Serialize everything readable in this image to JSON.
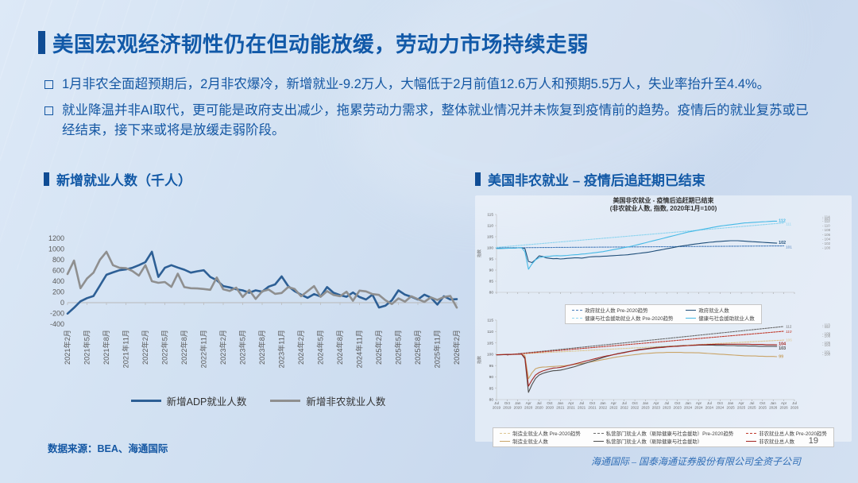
{
  "slide": {
    "title": "美国宏观经济韧性仍在但动能放缓，劳动力市场持续走弱",
    "bullets": [
      "1月非农全面超预期后，2月非农爆冷，新增就业-9.2万人，大幅低于2月前值12.6万人和预期5.5万人，失业率抬升至4.4%。",
      "就业降温并非AI取代，更可能是政府支出减少，拖累劳动力需求，整体就业情况并未恢复到疫情前的趋势。疫情后的就业复苏或已经结束，接下来或将是放缓走弱阶段。"
    ],
    "source": "数据来源：BEA、海通国际",
    "page_number": "19",
    "company_footer": "海通国际 – 国泰海通证券股份有限公司全资子公司"
  },
  "left_section": {
    "header": "新增就业人数（千人）"
  },
  "right_section": {
    "header": "美国非农就业 – 疫情后追赶期已结束"
  },
  "colors": {
    "title_blue": "#1159a8",
    "accent_navy": "#0f4c94",
    "adp_blue": "#2d5f95",
    "nfp_gray": "#8f8f8f",
    "gov_navy": "#1f4e79",
    "gov_trend": "#4a7ebb",
    "health_blue": "#45b9e6",
    "health_trend": "#8ed4ef",
    "mfg_tan": "#c9a468",
    "mfg_trend": "#ddc693",
    "priv_gray": "#4d4d4d",
    "priv_trend": "#6b6b6b",
    "nf_red": "#a32622",
    "nf_trend": "#c0392b"
  },
  "chart_data": [
    {
      "type": "line",
      "title": "新增就业人数（千人）",
      "ylim": [
        -400,
        1200
      ],
      "yticks": [
        1200,
        1000,
        800,
        600,
        400,
        200,
        0,
        -200,
        -400
      ],
      "x_label_step": 3,
      "x_labels": [
        "2021年2月",
        "2021年5月",
        "2021年8月",
        "2021年11月",
        "2022年2月",
        "2022年5月",
        "2022年8月",
        "2022年11月",
        "2023年2月",
        "2023年5月",
        "2023年8月",
        "2023年11月",
        "2024年2月",
        "2024年5月",
        "2024年8月",
        "2024年11月",
        "2025年2月",
        "2025年5月",
        "2025年8月",
        "2025年11月",
        "2026年2月"
      ],
      "legend_position": "bottom",
      "series": [
        {
          "name": "新增ADP就业人数",
          "color": "#2d5f95",
          "width": 2.6,
          "values": [
            -205,
            -95,
            25,
            85,
            125,
            320,
            520,
            565,
            605,
            620,
            650,
            700,
            755,
            950,
            480,
            650,
            700,
            655,
            615,
            560,
            585,
            605,
            480,
            420,
            310,
            285,
            250,
            230,
            185,
            230,
            205,
            300,
            340,
            490,
            310,
            215,
            150,
            90,
            160,
            115,
            290,
            185,
            140,
            110,
            190,
            105,
            60,
            150,
            -90,
            -55,
            45,
            230,
            150,
            110,
            60,
            150,
            95,
            -35,
            120,
            60,
            65
          ]
        },
        {
          "name": "新增非农就业人数",
          "color": "#8f8f8f",
          "width": 2.6,
          "values": [
            535,
            785,
            270,
            450,
            560,
            800,
            950,
            700,
            650,
            645,
            590,
            505,
            700,
            400,
            370,
            385,
            295,
            540,
            290,
            270,
            265,
            255,
            240,
            470,
            250,
            220,
            280,
            105,
            235,
            70,
            210,
            245,
            165,
            180,
            290,
            255,
            120,
            215,
            310,
            110,
            215,
            145,
            120,
            205,
            35,
            225,
            210,
            160,
            145,
            45,
            -25,
            80,
            20,
            120,
            65,
            15,
            100,
            50,
            105,
            126,
            -92
          ]
        }
      ]
    },
    {
      "type": "line",
      "title": "美国非农就业 - 疫情后追赶期已结束",
      "subtitle": "(非农就业人数, 指数, 2020年1月=100)",
      "ylabel": "指数",
      "ylim": [
        80,
        115
      ],
      "yticks": [
        80,
        85,
        90,
        95,
        100,
        105,
        110,
        115
      ],
      "x_start_label": "Jul 2019",
      "x_end_label": "Jul 2026",
      "right_axis_ticks": [
        100,
        102,
        104,
        106,
        108,
        110,
        112,
        113,
        114
      ],
      "legend_position": "bottom",
      "series": [
        {
          "name": "政府就业人数 Pre-2020趋势",
          "color": "#4a7ebb",
          "dash": true,
          "x": [
            0,
            81
          ],
          "values": [
            100.0,
            100.9
          ],
          "end_label": "101",
          "end_dy": 3
        },
        {
          "name": "健康与社会援助就业人数 Pre-2020趋势",
          "color": "#8ed4ef",
          "dash": true,
          "x": [
            0,
            81
          ],
          "values": [
            100.2,
            111.2
          ],
          "end_label": "111",
          "end_dy": 3
        },
        {
          "name": "政府就业人数",
          "color": "#1f4e79",
          "end_label": "102",
          "end_big": true,
          "end_dy": 1,
          "values": [
            99.8,
            99.8,
            99.8,
            99.9,
            99.9,
            99.9,
            100.0,
            100.0,
            99.7,
            93.9,
            93.4,
            94.7,
            96.4,
            96.1,
            95.5,
            95.3,
            95.1,
            95.2,
            95.0,
            95.1,
            95.3,
            95.4,
            95.5,
            95.5,
            95.4,
            95.6,
            95.9,
            96.0,
            96.1,
            96.1,
            96.2,
            96.3,
            96.4,
            96.5,
            96.6,
            96.7,
            96.8,
            96.9,
            97.1,
            97.3,
            97.5,
            97.7,
            97.9,
            98.1,
            98.4,
            98.7,
            99.0,
            99.3,
            99.6,
            99.9,
            100.2,
            100.5,
            100.8,
            101.0,
            101.2,
            101.5,
            101.7,
            101.9,
            102.1,
            102.3,
            102.5,
            102.6,
            102.8,
            102.9,
            103.0,
            103.1,
            103.2,
            103.2,
            103.2,
            103.1,
            103.0,
            102.9,
            102.8,
            102.7,
            102.6,
            102.5,
            102.4,
            102.3,
            102.2,
            102.1
          ]
        },
        {
          "name": "健康与社会援助就业人数",
          "color": "#45b9e6",
          "end_label": "112",
          "end_big": true,
          "end_dy": 1,
          "values": [
            99.7,
            99.7,
            99.8,
            99.8,
            99.9,
            99.9,
            100.0,
            100.1,
            98.3,
            90.4,
            92.8,
            94.6,
            95.6,
            95.9,
            96.1,
            96.2,
            96.4,
            96.5,
            96.4,
            96.5,
            96.6,
            96.8,
            96.9,
            97.0,
            97.2,
            97.3,
            97.5,
            97.7,
            97.9,
            98.1,
            98.3,
            98.6,
            98.9,
            99.2,
            99.5,
            99.8,
            100.1,
            100.4,
            100.7,
            101.1,
            101.5,
            101.9,
            102.3,
            102.7,
            103.1,
            103.5,
            103.9,
            104.3,
            104.7,
            105.1,
            105.5,
            105.9,
            106.3,
            106.7,
            107.1,
            107.4,
            107.7,
            108.0,
            108.3,
            108.6,
            108.9,
            109.2,
            109.5,
            109.8,
            110.0,
            110.2,
            110.4,
            110.6,
            110.8,
            111.0,
            111.2,
            111.3,
            111.4,
            111.5,
            111.6,
            111.7,
            111.8,
            111.9,
            112.0,
            112.0
          ]
        }
      ]
    },
    {
      "type": "line",
      "ylabel": "指数",
      "ylim": [
        80,
        115
      ],
      "yticks": [
        80,
        85,
        90,
        95,
        100,
        105,
        110,
        115
      ],
      "x_label_step": 3,
      "x_labels": [
        "Jul 2019",
        "Oct 2019",
        "Jan 2020",
        "Apr 2020",
        "Jul 2020",
        "Oct 2020",
        "Jan 2021",
        "Apr 2021",
        "Jul 2021",
        "Oct 2021",
        "Jan 2022",
        "Apr 2022",
        "Jul 2022",
        "Oct 2022",
        "Jan 2023",
        "Apr 2023",
        "Jul 2023",
        "Oct 2023",
        "Jan 2024",
        "Apr 2024",
        "Jul 2024",
        "Oct 2024",
        "Jan 2025",
        "Apr 2025",
        "Jul 2025",
        "Oct 2025",
        "Jan 2026",
        "Apr 2026",
        "Jul 2026"
      ],
      "right_axis_ticks": [
        100,
        101,
        104,
        105,
        108,
        109,
        112,
        113
      ],
      "legend_position": "bottom",
      "series": [
        {
          "name": "制造业就业人数 Pre-2020趋势",
          "color": "#ddc693",
          "dash": true,
          "x": [
            3,
            81
          ],
          "values": [
            99.8,
            106.2
          ],
          "end_label": "106",
          "end_dy": 1.5
        },
        {
          "name": "私营部门就业人数（剔除健康与社会援助）Pre-2020趋势",
          "color": "#6b6b6b",
          "dash": true,
          "x": [
            3,
            81
          ],
          "values": [
            99.7,
            112.2
          ],
          "end_label": "112",
          "end_dy": 1.5
        },
        {
          "name": "非农就业总人数 Pre-2020趋势",
          "color": "#c0392b",
          "dash": true,
          "x": [
            3,
            81
          ],
          "values": [
            99.7,
            110.1
          ],
          "end_label": "110",
          "end_italic": true,
          "end_dy": 2
        },
        {
          "name": "制造业就业人数",
          "color": "#c9a468",
          "end_label": "99",
          "end_big": true,
          "end_dy": 1.5,
          "values": [
            99.8,
            99.8,
            99.9,
            99.9,
            99.9,
            100.0,
            100.0,
            100.0,
            99.4,
            89.2,
            91.8,
            93.6,
            94.1,
            94.3,
            94.4,
            94.5,
            94.6,
            94.7,
            94.8,
            94.9,
            95.1,
            95.3,
            95.5,
            95.7,
            95.9,
            96.1,
            96.4,
            96.7,
            97.0,
            97.3,
            97.6,
            97.9,
            98.2,
            98.5,
            98.8,
            99.0,
            99.2,
            99.4,
            99.6,
            99.8,
            100.0,
            100.2,
            100.3,
            100.4,
            100.5,
            100.6,
            100.7,
            100.7,
            100.8,
            100.8,
            100.8,
            100.8,
            100.8,
            100.7,
            100.7,
            100.7,
            100.6,
            100.6,
            100.5,
            100.4,
            100.3,
            100.2,
            100.1,
            100.0,
            99.9,
            99.8,
            99.7,
            99.6,
            99.5,
            99.4,
            99.3,
            99.3,
            99.2,
            99.2,
            99.1,
            99.1,
            99.0,
            99.0,
            99.0,
            98.9
          ]
        },
        {
          "name": "私营部门就业人数（剔除健康与社会援助）",
          "color": "#4d4d4d",
          "end_label": "103",
          "end_big": true,
          "end_dy": 4,
          "values": [
            99.7,
            99.7,
            99.8,
            99.8,
            99.9,
            99.9,
            100.0,
            100.1,
            98.0,
            83.2,
            86.6,
            89.3,
            90.8,
            91.5,
            92.0,
            92.4,
            92.7,
            92.8,
            93.0,
            93.3,
            93.7,
            94.1,
            94.5,
            95.0,
            95.5,
            96.0,
            96.5,
            97.0,
            97.5,
            98.0,
            98.5,
            99.0,
            99.4,
            99.8,
            100.2,
            100.5,
            100.8,
            101.1,
            101.4,
            101.7,
            102.0,
            102.2,
            102.4,
            102.6,
            102.8,
            103.0,
            103.1,
            103.2,
            103.3,
            103.4,
            103.5,
            103.6,
            103.7,
            103.8,
            103.8,
            103.9,
            103.9,
            104.0,
            104.0,
            104.0,
            104.0,
            104.0,
            103.9,
            103.9,
            103.9,
            103.8,
            103.8,
            103.8,
            103.7,
            103.7,
            103.7,
            103.6,
            103.6,
            103.6,
            103.5,
            103.5,
            103.5,
            103.5,
            103.5,
            103.4
          ]
        },
        {
          "name": "非农就业总人数",
          "color": "#a32622",
          "end_label": "104",
          "end_big": true,
          "end_dy": 0.5,
          "values": [
            99.7,
            99.8,
            99.8,
            99.9,
            99.9,
            100.0,
            100.0,
            100.1,
            98.6,
            85.9,
            88.6,
            90.8,
            91.9,
            92.6,
            93.1,
            93.5,
            93.9,
            94.0,
            94.2,
            94.5,
            94.9,
            95.3,
            95.7,
            96.1,
            96.5,
            96.9,
            97.3,
            97.7,
            98.1,
            98.5,
            98.9,
            99.2,
            99.5,
            99.8,
            100.1,
            100.4,
            100.7,
            101.0,
            101.3,
            101.6,
            101.8,
            102.0,
            102.2,
            102.4,
            102.6,
            102.8,
            102.9,
            103.0,
            103.2,
            103.3,
            103.4,
            103.5,
            103.6,
            103.7,
            103.8,
            103.9,
            104.0,
            104.1,
            104.2,
            104.2,
            104.3,
            104.3,
            104.4,
            104.4,
            104.4,
            104.4,
            104.4,
            104.4,
            104.4,
            104.4,
            104.4,
            104.4,
            104.3,
            104.3,
            104.3,
            104.3,
            104.2,
            104.2,
            104.2,
            104.1
          ]
        }
      ]
    }
  ]
}
